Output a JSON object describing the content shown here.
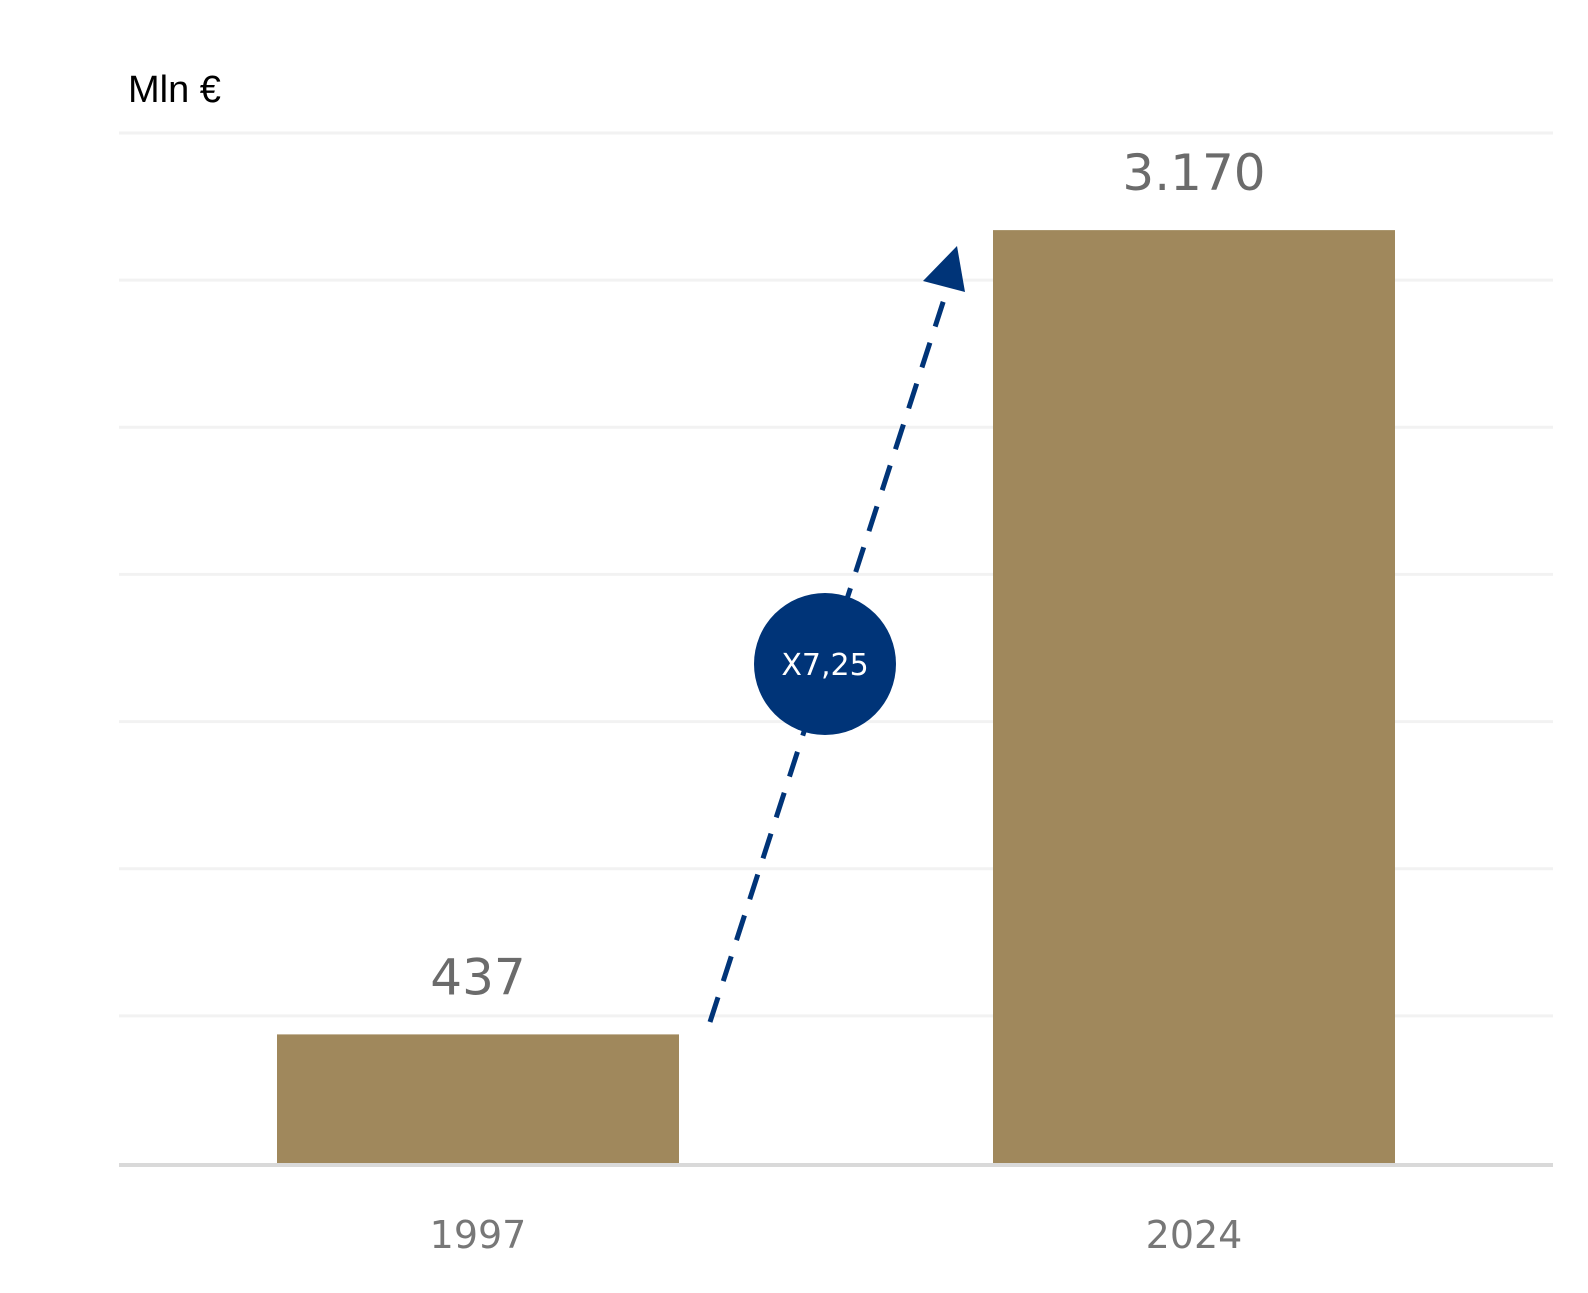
{
  "chart_data": {
    "type": "bar",
    "ylabel": "Mln €",
    "categories": [
      "1997",
      "2024"
    ],
    "values": [
      437,
      3170
    ],
    "value_labels": [
      "437",
      "3.170"
    ],
    "ylim": [
      0,
      3500
    ],
    "y_gridline_step": 500,
    "grid": true,
    "legend": "none",
    "annotation": {
      "type": "growth-arrow",
      "from": "1997",
      "to": "2024",
      "text": "X7,25"
    }
  },
  "colors": {
    "bar": "#a0885c",
    "gridline": "#f2f2f2",
    "baseline": "#d9d9d9",
    "arrow": "#003478",
    "badge_text": "#ffffff"
  }
}
